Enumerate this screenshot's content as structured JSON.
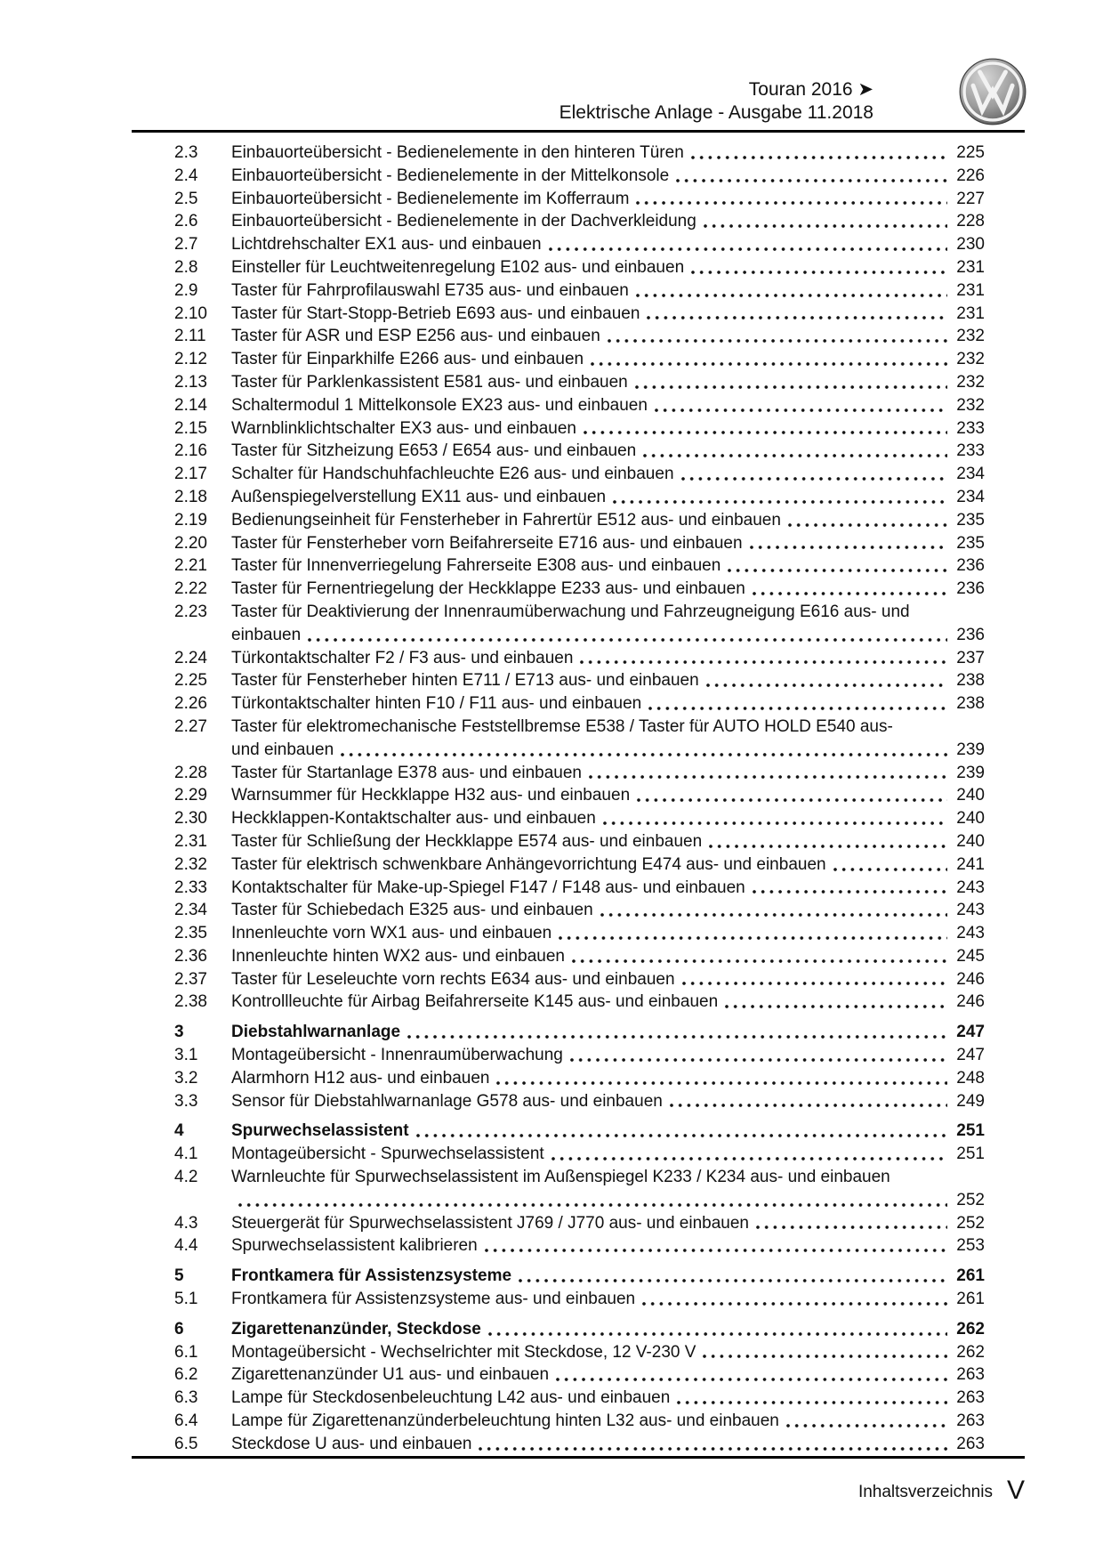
{
  "header": {
    "model_line": "Touran 2016 ➤",
    "doc_line": "Elektrische Anlage - Ausgabe 11.2018",
    "logo": "vw-logo"
  },
  "toc": {
    "entries": [
      {
        "num": "2.3",
        "title": "Einbauorteübersicht - Bedienelemente in den hinteren Türen",
        "page": "225"
      },
      {
        "num": "2.4",
        "title": "Einbauorteübersicht - Bedienelemente in der Mittelkonsole",
        "page": "226"
      },
      {
        "num": "2.5",
        "title": "Einbauorteübersicht - Bedienelemente im Kofferraum",
        "page": "227"
      },
      {
        "num": "2.6",
        "title": "Einbauorteübersicht - Bedienelemente in der Dachverkleidung",
        "page": "228"
      },
      {
        "num": "2.7",
        "title": "Lichtdrehschalter EX1 aus- und einbauen",
        "page": "230"
      },
      {
        "num": "2.8",
        "title": "Einsteller für Leuchtweitenregelung E102 aus- und einbauen",
        "page": "231"
      },
      {
        "num": "2.9",
        "title": "Taster für Fahrprofilauswahl E735 aus- und einbauen",
        "page": "231"
      },
      {
        "num": "2.10",
        "title": "Taster für Start-Stopp-Betrieb E693 aus- und einbauen",
        "page": "231"
      },
      {
        "num": "2.11",
        "title": "Taster für ASR und ESP E256 aus- und einbauen",
        "page": "232"
      },
      {
        "num": "2.12",
        "title": "Taster für Einparkhilfe E266 aus- und einbauen",
        "page": "232"
      },
      {
        "num": "2.13",
        "title": "Taster für Parklenkassistent E581 aus- und einbauen",
        "page": "232"
      },
      {
        "num": "2.14",
        "title": "Schaltermodul 1 Mittelkonsole EX23 aus- und einbauen",
        "page": "232"
      },
      {
        "num": "2.15",
        "title": "Warnblinklichtschalter EX3 aus- und einbauen",
        "page": "233"
      },
      {
        "num": "2.16",
        "title": "Taster für Sitzheizung E653 / E654 aus- und einbauen",
        "page": "233"
      },
      {
        "num": "2.17",
        "title": "Schalter für Handschuhfachleuchte E26 aus- und einbauen",
        "page": "234"
      },
      {
        "num": "2.18",
        "title": "Außenspiegelverstellung EX11 aus- und einbauen",
        "page": "234"
      },
      {
        "num": "2.19",
        "title": "Bedienungseinheit für Fensterheber in Fahrertür E512 aus- und einbauen",
        "page": "235"
      },
      {
        "num": "2.20",
        "title": "Taster für Fensterheber vorn Beifahrerseite E716 aus- und einbauen",
        "page": "235"
      },
      {
        "num": "2.21",
        "title": "Taster für Innenverriegelung Fahrerseite E308 aus- und einbauen",
        "page": "236"
      },
      {
        "num": "2.22",
        "title": "Taster für Fernentriegelung der Heckklappe E233 aus- und einbauen",
        "page": "236"
      },
      {
        "num": "2.23",
        "title": "Taster für Deaktivierung der Innenraumüberwachung und Fahrzeugneigung E616 aus- und",
        "title2": "einbauen",
        "page": "236"
      },
      {
        "num": "2.24",
        "title": "Türkontaktschalter F2 / F3 aus- und einbauen",
        "page": "237"
      },
      {
        "num": "2.25",
        "title": "Taster für Fensterheber hinten E711 / E713 aus- und einbauen",
        "page": "238"
      },
      {
        "num": "2.26",
        "title": "Türkontaktschalter hinten F10 / F11 aus- und einbauen",
        "page": "238"
      },
      {
        "num": "2.27",
        "title": "Taster für elektromechanische Feststellbremse E538 / Taster für AUTO HOLD E540 aus-",
        "title2": "und einbauen",
        "page": "239"
      },
      {
        "num": "2.28",
        "title": "Taster für Startanlage E378 aus- und einbauen",
        "page": "239"
      },
      {
        "num": "2.29",
        "title": "Warnsummer für Heckklappe H32 aus- und einbauen",
        "page": "240"
      },
      {
        "num": "2.30",
        "title": "Heckklappen-Kontaktschalter aus- und einbauen",
        "page": "240"
      },
      {
        "num": "2.31",
        "title": "Taster für Schließung der Heckklappe E574 aus- und einbauen",
        "page": "240"
      },
      {
        "num": "2.32",
        "title": "Taster für elektrisch schwenkbare Anhängevorrichtung E474 aus- und einbauen",
        "page": "241"
      },
      {
        "num": "2.33",
        "title": "Kontaktschalter für Make-up-Spiegel F147 / F148 aus- und einbauen",
        "page": "243"
      },
      {
        "num": "2.34",
        "title": "Taster für Schiebedach E325 aus- und einbauen",
        "page": "243"
      },
      {
        "num": "2.35",
        "title": "Innenleuchte vorn WX1 aus- und einbauen",
        "page": "243"
      },
      {
        "num": "2.36",
        "title": "Innenleuchte hinten WX2 aus- und einbauen",
        "page": "245"
      },
      {
        "num": "2.37",
        "title": "Taster für Leseleuchte vorn rechts E634 aus- und einbauen",
        "page": "246"
      },
      {
        "num": "2.38",
        "title": "Kontrollleuchte für Airbag Beifahrerseite K145 aus- und einbauen",
        "page": "246"
      },
      {
        "num": "3",
        "title": "Diebstahlwarnanlage",
        "page": "247",
        "bold": true
      },
      {
        "num": "3.1",
        "title": "Montageübersicht - Innenraumüberwachung",
        "page": "247"
      },
      {
        "num": "3.2",
        "title": "Alarmhorn H12 aus- und einbauen",
        "page": "248"
      },
      {
        "num": "3.3",
        "title": "Sensor für Diebstahlwarnanlage G578 aus- und einbauen",
        "page": "249"
      },
      {
        "num": "4",
        "title": "Spurwechselassistent",
        "page": "251",
        "bold": true
      },
      {
        "num": "4.1",
        "title": "Montageübersicht - Spurwechselassistent",
        "page": "251"
      },
      {
        "num": "4.2",
        "title": "Warnleuchte für Spurwechselassistent im Außenspiegel K233 / K234 aus- und einbauen",
        "title2": "",
        "page": "252"
      },
      {
        "num": "4.3",
        "title": "Steuergerät für Spurwechselassistent J769 / J770 aus- und einbauen",
        "page": "252"
      },
      {
        "num": "4.4",
        "title": "Spurwechselassistent kalibrieren",
        "page": "253"
      },
      {
        "num": "5",
        "title": "Frontkamera für Assistenzsysteme",
        "page": "261",
        "bold": true
      },
      {
        "num": "5.1",
        "title": "Frontkamera für Assistenzsysteme aus- und einbauen",
        "page": "261"
      },
      {
        "num": "6",
        "title": "Zigarettenanzünder, Steckdose",
        "page": "262",
        "bold": true
      },
      {
        "num": "6.1",
        "title": "Montageübersicht - Wechselrichter mit Steckdose, 12 V-230 V",
        "page": "262"
      },
      {
        "num": "6.2",
        "title": "Zigarettenanzünder U1 aus- und einbauen",
        "page": "263"
      },
      {
        "num": "6.3",
        "title": "Lampe für Steckdosenbeleuchtung L42 aus- und einbauen",
        "page": "263"
      },
      {
        "num": "6.4",
        "title": "Lampe für Zigarettenanzünderbeleuchtung hinten L32 aus- und einbauen",
        "page": "263"
      },
      {
        "num": "6.5",
        "title": "Steckdose U aus- und einbauen",
        "page": "263"
      }
    ]
  },
  "footer": {
    "label": "Inhaltsverzeichnis",
    "page_roman": "V"
  }
}
